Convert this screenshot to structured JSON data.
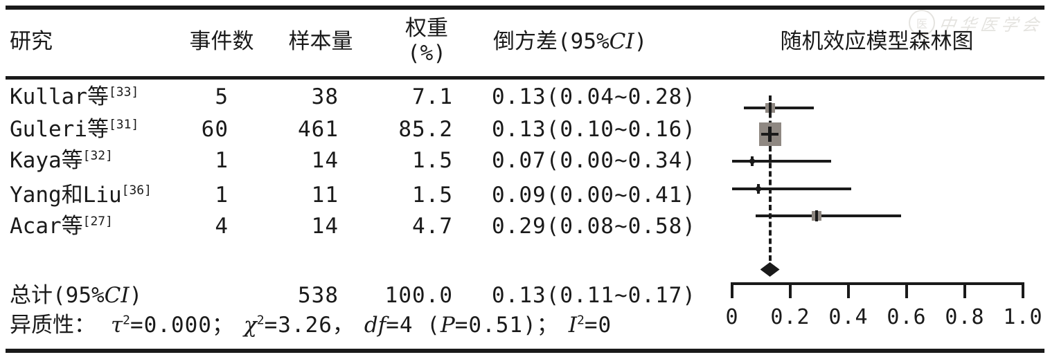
{
  "table": {
    "headers": {
      "study": "研究",
      "events": "事件数",
      "sample": "样本量",
      "weight_line1": "权重",
      "weight_line2": "(%)",
      "invvar_pre": "倒方差(95%",
      "invvar_ci": "CI",
      "invvar_post": ")",
      "forest": "随机效应模型森林图"
    },
    "rows": [
      {
        "study": "Kullar等",
        "ref": "[33]",
        "events": "5",
        "n": "38",
        "weight": "7.1",
        "ci": "0.13(0.04∼0.28)"
      },
      {
        "study": "Guleri等",
        "ref": "[31]",
        "events": "60",
        "n": "461",
        "weight": "85.2",
        "ci": "0.13(0.10∼0.16)"
      },
      {
        "study": "Kaya等",
        "ref": "[32]",
        "events": "1",
        "n": "14",
        "weight": "1.5",
        "ci": "0.07(0.00∼0.34)"
      },
      {
        "study": "Yang和Liu",
        "ref": "[36]",
        "events": "1",
        "n": "11",
        "weight": "1.5",
        "ci": "0.09(0.00∼0.41)"
      },
      {
        "study": "Acar等",
        "ref": "[27]",
        "events": "4",
        "n": "14",
        "weight": "4.7",
        "ci": "0.29(0.08∼0.58)"
      }
    ],
    "total": {
      "label_pre": "总计(95%",
      "label_ci": "CI",
      "label_post": ")",
      "n": "538",
      "weight": "100.0",
      "ci": "0.13(0.11∼0.17)"
    },
    "heterogeneity": {
      "prefix": "异质性：",
      "tau": "τ",
      "tau_sup": "2",
      "tau_rest": "=0.000；",
      "chi": "χ",
      "chi_sup": "2",
      "chi_rest": "=3.26，",
      "df": "df",
      "df_rest": "=4 (",
      "p": "P",
      "p_rest": "=0.51)；",
      "i": "I",
      "i_sup": "2",
      "i_rest": "=0"
    }
  },
  "watermark": {
    "emblem": "医",
    "text": "中华医学会"
  },
  "colors": {
    "text": "#1a1a1a",
    "rule": "#1a1a1a",
    "marker_gray": "#8f8882"
  },
  "chart_data": {
    "type": "forest",
    "title": "随机效应模型森林图",
    "effect_measure_label": "倒方差(95%CI)",
    "x_axis": {
      "min": 0,
      "max": 1.0,
      "ticks": [
        0,
        0.2,
        0.4,
        0.6,
        0.8,
        1.0
      ],
      "tick_labels": [
        "0",
        "0.2",
        "0.4",
        "0.6",
        "0.8",
        "1.0"
      ]
    },
    "reference_line": 0.13,
    "studies": [
      {
        "name": "Kullar等[33]",
        "events": 5,
        "n": 38,
        "weight_pct": 7.1,
        "est": 0.13,
        "ci_low": 0.04,
        "ci_high": 0.28,
        "marker": "small-square"
      },
      {
        "name": "Guleri等[31]",
        "events": 60,
        "n": 461,
        "weight_pct": 85.2,
        "est": 0.13,
        "ci_low": 0.1,
        "ci_high": 0.16,
        "marker": "large-square"
      },
      {
        "name": "Kaya等[32]",
        "events": 1,
        "n": 14,
        "weight_pct": 1.5,
        "est": 0.07,
        "ci_low": 0.0,
        "ci_high": 0.34,
        "marker": "point"
      },
      {
        "name": "Yang和Liu[36]",
        "events": 1,
        "n": 11,
        "weight_pct": 1.5,
        "est": 0.09,
        "ci_low": 0.0,
        "ci_high": 0.41,
        "marker": "point"
      },
      {
        "name": "Acar等[27]",
        "events": 4,
        "n": 14,
        "weight_pct": 4.7,
        "est": 0.29,
        "ci_low": 0.08,
        "ci_high": 0.58,
        "marker": "small-square"
      }
    ],
    "pooled": {
      "label": "总计(95%CI)",
      "n": 538,
      "weight_pct": 100.0,
      "est": 0.13,
      "ci_low": 0.11,
      "ci_high": 0.17
    },
    "heterogeneity_text": "异质性：τ²=0.000；χ²=3.26，df=4 (P=0.51)；I²=0"
  }
}
